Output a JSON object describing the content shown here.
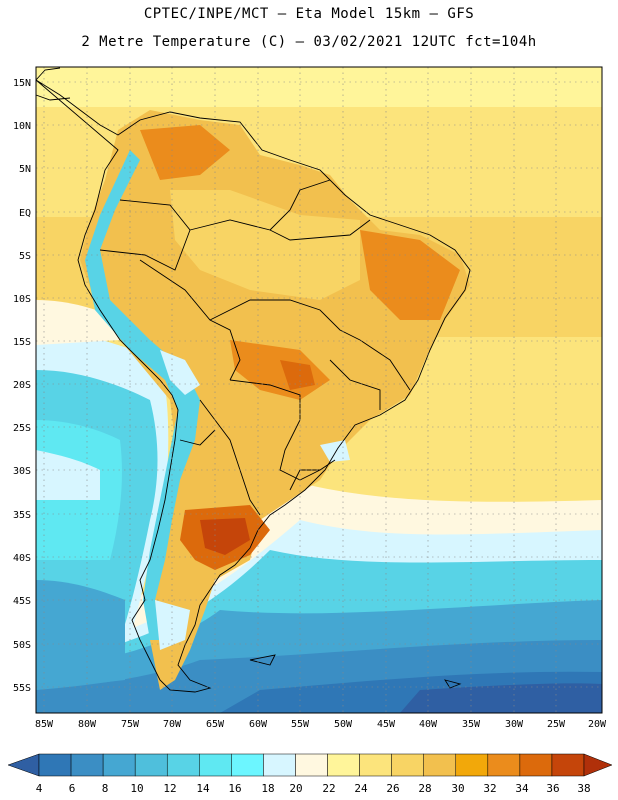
{
  "header": {
    "line1": "CPTEC/INPE/MCT –  Eta Model 15km – GFS",
    "line2": "2 Metre Temperature (C) – 03/02/2021 12UTC fct=104h"
  },
  "map": {
    "lat_labels": [
      "15N",
      "10N",
      "5N",
      "EQ",
      "5S",
      "10S",
      "15S",
      "20S",
      "25S",
      "30S",
      "35S",
      "40S",
      "45S",
      "50S",
      "55S"
    ],
    "lon_labels": [
      "85W",
      "80W",
      "75W",
      "70W",
      "65W",
      "60W",
      "55W",
      "50W",
      "45W",
      "40W",
      "35W",
      "30W",
      "25W",
      "20W"
    ]
  },
  "colorbar": {
    "levels": [
      "4",
      "6",
      "8",
      "10",
      "12",
      "14",
      "16",
      "18",
      "20",
      "22",
      "24",
      "26",
      "28",
      "30",
      "32",
      "34",
      "36",
      "38"
    ],
    "colors": [
      "#2f5fa3",
      "#2f77b6",
      "#3b8ec4",
      "#45a7d2",
      "#4fbfdc",
      "#58d3e6",
      "#5fe8f2",
      "#6cf6ff",
      "#d7f6ff",
      "#fff8e0",
      "#fff59a",
      "#fce47c",
      "#f8d464",
      "#f2c04e",
      "#f2a80a",
      "#eb8c1c",
      "#dc6a0c",
      "#c5450a",
      "#b0300a"
    ]
  }
}
